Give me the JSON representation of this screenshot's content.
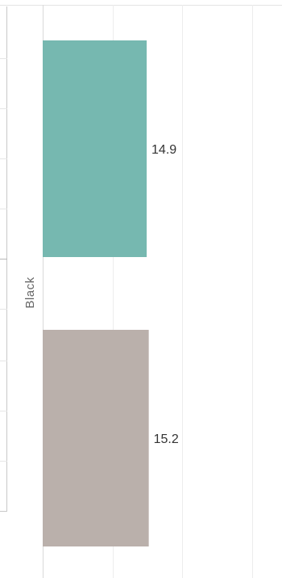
{
  "chart_data": {
    "type": "bar",
    "orientation": "horizontal",
    "categories": [
      "Black"
    ],
    "series": [
      {
        "values": [
          14.9
        ],
        "color": "#76b8b0"
      },
      {
        "values": [
          15.2
        ],
        "color": "#bab0ab"
      }
    ],
    "data_labels": [
      "14.9",
      "15.2"
    ],
    "xlim": [
      0,
      34
    ],
    "grid": true,
    "title": "",
    "xlabel": "",
    "ylabel": ""
  }
}
